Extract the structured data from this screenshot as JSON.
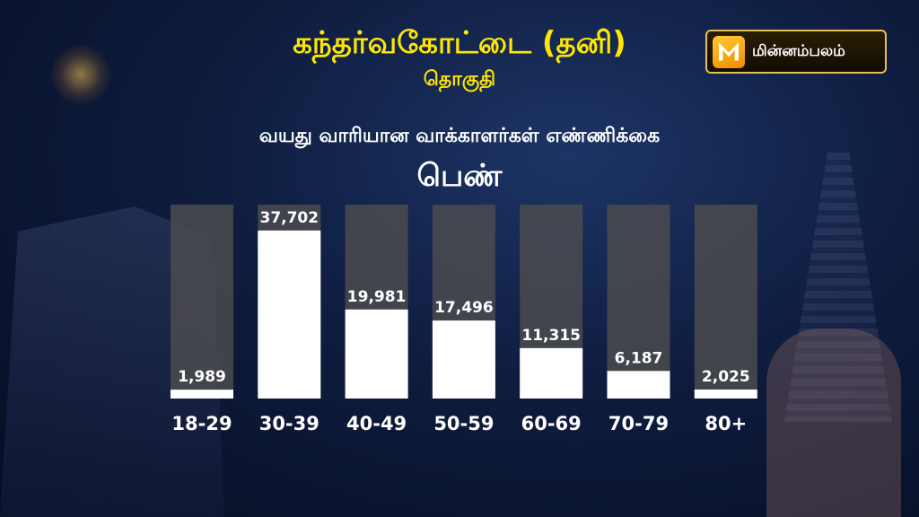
{
  "header": {
    "title": "கந்தர்வகோட்டை (தனி)",
    "subtitle": "தொகுதி"
  },
  "logo": {
    "text": "மின்னம்பலம்",
    "icon": "m-logo-icon"
  },
  "colors": {
    "title": "#ffe600",
    "bar_fill": "#ffffff",
    "bar_track": "#4b4b4f"
  },
  "chart_data": {
    "type": "bar",
    "title": "வயது வாரியான வாக்காளர்கள் எண்ணிக்கை",
    "subtitle": "பெண்",
    "categories": [
      "18-29",
      "30-39",
      "40-49",
      "50-59",
      "60-69",
      "70-79",
      "80+"
    ],
    "values": [
      1989,
      37702,
      19981,
      17496,
      11315,
      6187,
      2025
    ],
    "value_labels": [
      "1,989",
      "37,702",
      "19,981",
      "17,496",
      "11,315",
      "6,187",
      "2,025"
    ],
    "xlabel": "",
    "ylabel": "",
    "ylim": [
      0,
      43500
    ],
    "grid": false,
    "legend": "none"
  }
}
